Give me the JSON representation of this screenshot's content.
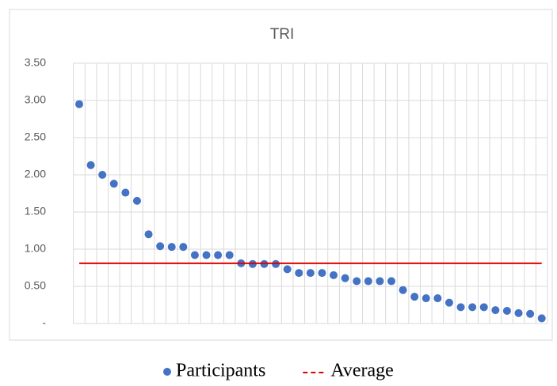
{
  "chart_data": {
    "type": "line",
    "title": "TRI",
    "categories": [
      null,
      null,
      null,
      null,
      null,
      null,
      null,
      null,
      null,
      null,
      null,
      null,
      null,
      null,
      null,
      null,
      null,
      null,
      null,
      null,
      null,
      null,
      null,
      null,
      null,
      null,
      null,
      null,
      null,
      null,
      null,
      null,
      null,
      null,
      null,
      null,
      null,
      null,
      null,
      null,
      null
    ],
    "series": [
      {
        "name": "Participants",
        "color": "#4472c4",
        "mode": "markers",
        "values": [
          2.95,
          2.13,
          2.0,
          1.88,
          1.76,
          1.65,
          1.2,
          1.04,
          1.03,
          1.03,
          0.92,
          0.92,
          0.92,
          0.92,
          0.81,
          0.8,
          0.8,
          0.8,
          0.73,
          0.68,
          0.68,
          0.68,
          0.65,
          0.61,
          0.57,
          0.57,
          0.57,
          0.57,
          0.45,
          0.36,
          0.34,
          0.34,
          0.28,
          0.22,
          0.22,
          0.22,
          0.18,
          0.17,
          0.14,
          0.13,
          0.07
        ]
      },
      {
        "name": "Average",
        "color": "#e00000",
        "mode": "line",
        "values": [
          0.81,
          0.81,
          0.81,
          0.81,
          0.81,
          0.81,
          0.81,
          0.81,
          0.81,
          0.81,
          0.81,
          0.81,
          0.81,
          0.81,
          0.81,
          0.81,
          0.81,
          0.81,
          0.81,
          0.81,
          0.81,
          0.81,
          0.81,
          0.81,
          0.81,
          0.81,
          0.81,
          0.81,
          0.81,
          0.81,
          0.81,
          0.81,
          0.81,
          0.81,
          0.81,
          0.81,
          0.81,
          0.81,
          0.81,
          0.81,
          0.81
        ]
      }
    ],
    "ylim": [
      0,
      3.5
    ],
    "yticks": [
      {
        "value": 0,
        "label": "-"
      },
      {
        "value": 0.5,
        "label": "0.50"
      },
      {
        "value": 1,
        "label": "1.00"
      },
      {
        "value": 1.5,
        "label": "1.50"
      },
      {
        "value": 2,
        "label": "2.00"
      },
      {
        "value": 2.5,
        "label": "2.50"
      },
      {
        "value": 3,
        "label": "3.00"
      },
      {
        "value": 3.5,
        "label": "3.50"
      }
    ],
    "grid": true,
    "legend": "bottom"
  }
}
